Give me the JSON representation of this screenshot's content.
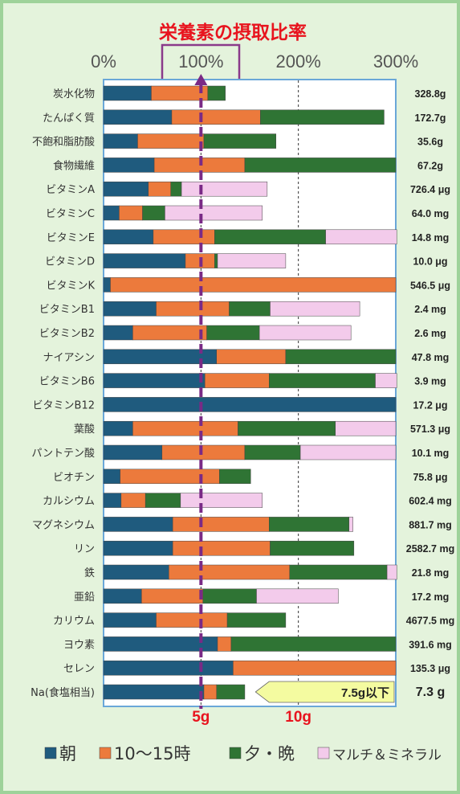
{
  "chart_data": {
    "type": "bar",
    "stacked": true,
    "orientation": "horizontal",
    "title": "栄養素の摂取比率",
    "x_ticks": [
      "0%",
      "100%",
      "200%",
      "300%"
    ],
    "xlim": [
      0,
      300
    ],
    "grid": "dashed vertical lines at 100% and 200%",
    "reference_line": {
      "value": 100,
      "style": "purple dashed arrow"
    },
    "categories": [
      "炭水化物",
      "たんぱく質",
      "不飽和脂肪酸",
      "食物繊維",
      "ビタミンA",
      "ビタミンC",
      "ビタミンE",
      "ビタミンD",
      "ビタミンK",
      "ビタミンB1",
      "ビタミンB2",
      "ナイアシン",
      "ビタミンB6",
      "ビタミンB12",
      "葉酸",
      "パントテン酸",
      "ビオチン",
      "カルシウム",
      "マグネシウム",
      "リン",
      "鉄",
      "亜鉛",
      "カリウム",
      "ヨウ素",
      "セレン",
      "Na(食塩相当)"
    ],
    "intake_values": [
      "328.8g",
      "172.7g",
      "35.6g",
      "67.2g",
      "726.4 μg",
      "64.0 mg",
      "14.8 mg",
      "10.0 μg",
      "546.5 μg",
      "2.4 mg",
      "2.6 mg",
      "47.8 mg",
      "3.9 mg",
      "17.2 μg",
      "571.3 μg",
      "10.1 mg",
      "75.8 μg",
      "602.4 mg",
      "881.7 mg",
      "2582.7 mg",
      "21.8 mg",
      "17.2 mg",
      "4677.5 mg",
      "391.6 mg",
      "135.3 μg",
      "7.3 g"
    ],
    "series": [
      {
        "name": "朝",
        "color": "#1f5b7e",
        "values": [
          49,
          70,
          35,
          52,
          46,
          16,
          51,
          84,
          7,
          54,
          30,
          116,
          104,
          300,
          30,
          60,
          17,
          18,
          71,
          71,
          67,
          39,
          54,
          117,
          133,
          103
        ]
      },
      {
        "name": "10〜15時",
        "color": "#ec7a3c",
        "values": [
          58,
          91,
          68,
          93,
          23,
          24,
          63,
          30,
          293,
          75,
          76,
          71,
          66,
          0,
          108,
          85,
          102,
          25,
          99,
          100,
          124,
          63,
          73,
          14,
          167,
          13
        ]
      },
      {
        "name": "夕・晩",
        "color": "#2f7434",
        "values": [
          18,
          127,
          74,
          155,
          11,
          23,
          114,
          3,
          0,
          42,
          54,
          113,
          109,
          0,
          100,
          57,
          32,
          36,
          82,
          86,
          100,
          55,
          60,
          169,
          0,
          29
        ]
      },
      {
        "name": "マルチ＆ミネラル",
        "color": "#f3cbeb",
        "values": [
          0,
          0,
          0,
          0,
          88,
          100,
          73,
          70,
          0,
          92,
          94,
          0,
          22,
          0,
          62,
          98,
          0,
          84,
          4,
          0,
          10,
          84,
          0,
          0,
          0,
          0
        ]
      }
    ],
    "sodium_axis": {
      "ticks": [
        "5g",
        "10g"
      ],
      "limit_label": "7.5g以下"
    }
  }
}
